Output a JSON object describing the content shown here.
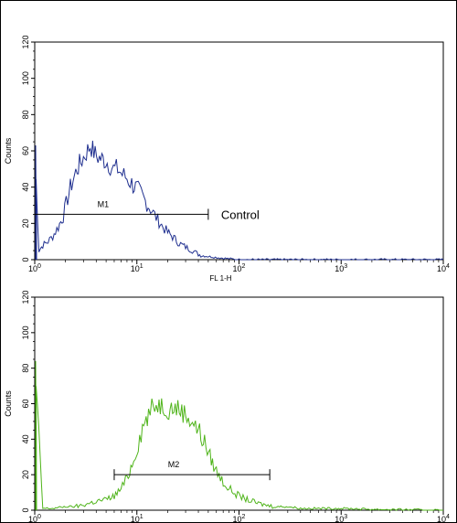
{
  "chart_data": [
    {
      "type": "line",
      "title": "",
      "xlabel": "FL 1-H",
      "ylabel": "Counts",
      "x_scale": "log",
      "xlim": [
        1,
        10000
      ],
      "ylim": [
        0,
        120
      ],
      "x_ticks": [
        {
          "base": "10",
          "exp": "0"
        },
        {
          "base": "10",
          "exp": "1"
        },
        {
          "base": "10",
          "exp": "2"
        },
        {
          "base": "10",
          "exp": "3"
        },
        {
          "base": "10",
          "exp": "4"
        }
      ],
      "y_ticks": [
        "0",
        "20",
        "40",
        "60",
        "80",
        "100",
        "120"
      ],
      "grid": false,
      "series": [
        {
          "color": "#1f2f8f",
          "x": [
            1.0,
            1.1,
            1.2,
            1.35,
            1.5,
            1.7,
            1.9,
            2.1,
            2.3,
            2.6,
            2.9,
            3.2,
            3.5,
            3.9,
            4.3,
            4.8,
            5.3,
            5.9,
            6.5,
            7.2,
            8.0,
            8.9,
            10,
            11,
            12.5,
            14,
            16,
            18,
            20,
            23,
            26,
            30,
            35,
            40,
            46,
            55,
            65,
            80,
            100,
            10000
          ],
          "y": [
            63,
            5,
            8,
            10,
            13,
            18,
            24,
            34,
            42,
            50,
            55,
            59,
            63,
            58,
            56,
            55,
            53,
            50,
            50,
            47,
            45,
            42,
            39,
            36,
            31,
            27,
            22,
            18,
            15,
            12,
            9,
            7,
            5,
            3,
            2,
            1.5,
            1,
            0.5,
            0,
            0
          ]
        }
      ],
      "markers": [
        {
          "label": "M1",
          "x_start": 1.0,
          "x_end": 50,
          "y": 25
        }
      ],
      "annotation": "Control"
    },
    {
      "type": "line",
      "title": "",
      "xlabel": "",
      "ylabel": "Counts",
      "x_scale": "log",
      "xlim": [
        1,
        10000
      ],
      "ylim": [
        0,
        120
      ],
      "x_ticks": [
        {
          "base": "10",
          "exp": "0"
        },
        {
          "base": "10",
          "exp": "1"
        },
        {
          "base": "10",
          "exp": "2"
        },
        {
          "base": "10",
          "exp": "3"
        },
        {
          "base": "10",
          "exp": "4"
        }
      ],
      "y_ticks": [
        "0",
        "20",
        "40",
        "60",
        "80",
        "100",
        "120"
      ],
      "grid": false,
      "series": [
        {
          "color": "#4fb41a",
          "x": [
            1.0,
            1.2,
            1.5,
            2.0,
            2.5,
            3.0,
            3.5,
            4.0,
            5.0,
            6.0,
            7.0,
            8.0,
            9.0,
            10,
            11,
            12,
            13,
            14,
            16,
            18,
            20,
            23,
            26,
            30,
            35,
            40,
            46,
            52,
            60,
            70,
            80,
            100,
            120,
            150,
            180,
            220,
            300,
            400,
            600,
            1000,
            2000,
            10000
          ],
          "y": [
            84,
            1,
            1,
            2,
            2,
            3,
            4,
            5,
            6,
            8,
            12,
            18,
            26,
            35,
            44,
            50,
            53,
            57,
            60,
            59,
            57,
            58,
            57,
            54,
            50,
            45,
            38,
            30,
            22,
            16,
            12,
            8,
            6,
            4,
            3,
            2,
            2,
            1,
            1,
            1,
            0.5,
            0
          ]
        }
      ],
      "markers": [
        {
          "label": "M2",
          "x_start": 6,
          "x_end": 200,
          "y": 20
        }
      ],
      "annotation": ""
    }
  ]
}
